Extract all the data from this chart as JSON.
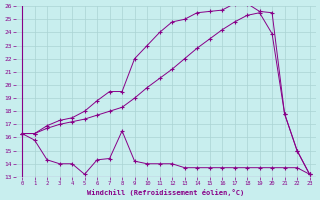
{
  "xlabel": "Windchill (Refroidissement éolien,°C)",
  "bg_color": "#c8eeee",
  "grid_color": "#aad4d4",
  "line_color": "#880088",
  "xlim": [
    -0.5,
    23.5
  ],
  "ylim": [
    13,
    26
  ],
  "xticks": [
    0,
    1,
    2,
    3,
    4,
    5,
    6,
    7,
    8,
    9,
    10,
    11,
    12,
    13,
    14,
    15,
    16,
    17,
    18,
    19,
    20,
    21,
    22,
    23
  ],
  "yticks": [
    13,
    14,
    15,
    16,
    17,
    18,
    19,
    20,
    21,
    22,
    23,
    24,
    25,
    26
  ],
  "line1_x": [
    0,
    1,
    2,
    3,
    4,
    5,
    6,
    7,
    8,
    9,
    10,
    11,
    12,
    13,
    14,
    15,
    16,
    17,
    18,
    19,
    20,
    21,
    22,
    23
  ],
  "line1_y": [
    16.3,
    15.8,
    14.3,
    14.0,
    14.0,
    13.2,
    14.3,
    14.4,
    16.5,
    14.2,
    14.0,
    14.0,
    14.0,
    13.7,
    13.7,
    13.7,
    13.7,
    13.7,
    13.7,
    13.7,
    13.7,
    13.7,
    13.7,
    13.2
  ],
  "line2_x": [
    0,
    1,
    2,
    3,
    4,
    5,
    6,
    7,
    8,
    9,
    10,
    11,
    12,
    13,
    14,
    15,
    16,
    17,
    18,
    19,
    20,
    21,
    22,
    23
  ],
  "line2_y": [
    16.3,
    16.3,
    16.7,
    17.0,
    17.2,
    17.4,
    17.7,
    18.0,
    18.3,
    19.0,
    19.8,
    20.5,
    21.2,
    22.0,
    22.8,
    23.5,
    24.2,
    24.8,
    25.3,
    25.5,
    23.9,
    17.8,
    15.0,
    13.2
  ],
  "line3_x": [
    0,
    1,
    2,
    3,
    4,
    5,
    6,
    7,
    8,
    9,
    10,
    11,
    12,
    13,
    14,
    15,
    16,
    17,
    18,
    19,
    20,
    21,
    22,
    23
  ],
  "line3_y": [
    16.3,
    16.3,
    16.9,
    17.3,
    17.5,
    18.0,
    18.8,
    19.5,
    19.5,
    22.0,
    23.0,
    24.0,
    24.8,
    25.0,
    25.5,
    25.6,
    25.7,
    26.2,
    26.2,
    25.6,
    25.5,
    17.8,
    15.0,
    13.2
  ]
}
